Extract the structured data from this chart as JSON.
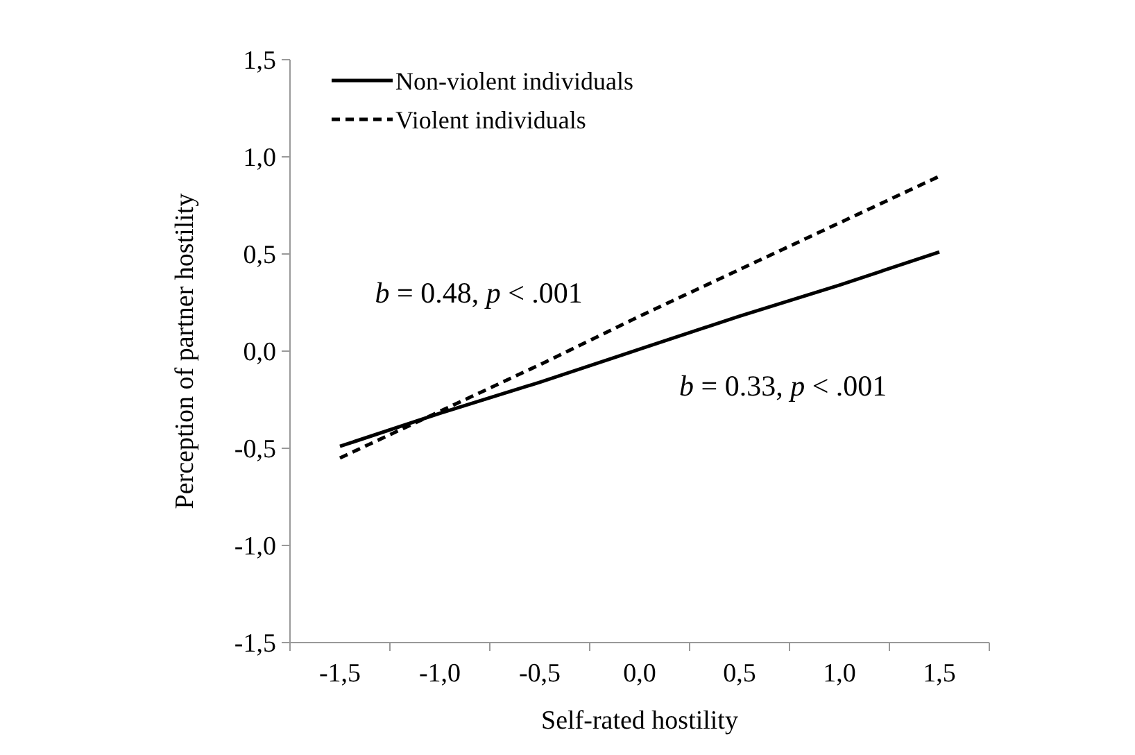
{
  "chart_data": {
    "type": "line",
    "xlabel": "Self-rated hostility",
    "ylabel": "Perception of partner hostility",
    "categories": [
      "-1,5",
      "-1,0",
      "-0,5",
      "0,0",
      "0,5",
      "1,0",
      "1,5"
    ],
    "series": [
      {
        "name": "Non-violent individuals",
        "color": "#000000",
        "line_style": "solid",
        "values": [
          -0.49,
          -0.32,
          -0.16,
          0.01,
          0.18,
          0.34,
          0.51
        ]
      },
      {
        "name": "Violent individuals",
        "color": "#000000",
        "line_style": "dashed",
        "values": [
          -0.55,
          -0.31,
          -0.07,
          0.18,
          0.42,
          0.66,
          0.9
        ]
      }
    ],
    "ylim": [
      -1.5,
      1.5
    ],
    "yticks": [
      {
        "value": -1.5,
        "label": "-1,5"
      },
      {
        "value": -1.0,
        "label": "-1,0"
      },
      {
        "value": -0.5,
        "label": "-0,5"
      },
      {
        "value": 0,
        "label": "0,0"
      },
      {
        "value": 0.5,
        "label": "0,5"
      },
      {
        "value": 1.0,
        "label": "1,0"
      },
      {
        "value": 1.5,
        "label": "1,5"
      }
    ],
    "annotations": [
      "b = 0.48, p < .001",
      "b = 0.33, p < .001"
    ],
    "legend": "top left",
    "grid": false,
    "marker": "none"
  }
}
